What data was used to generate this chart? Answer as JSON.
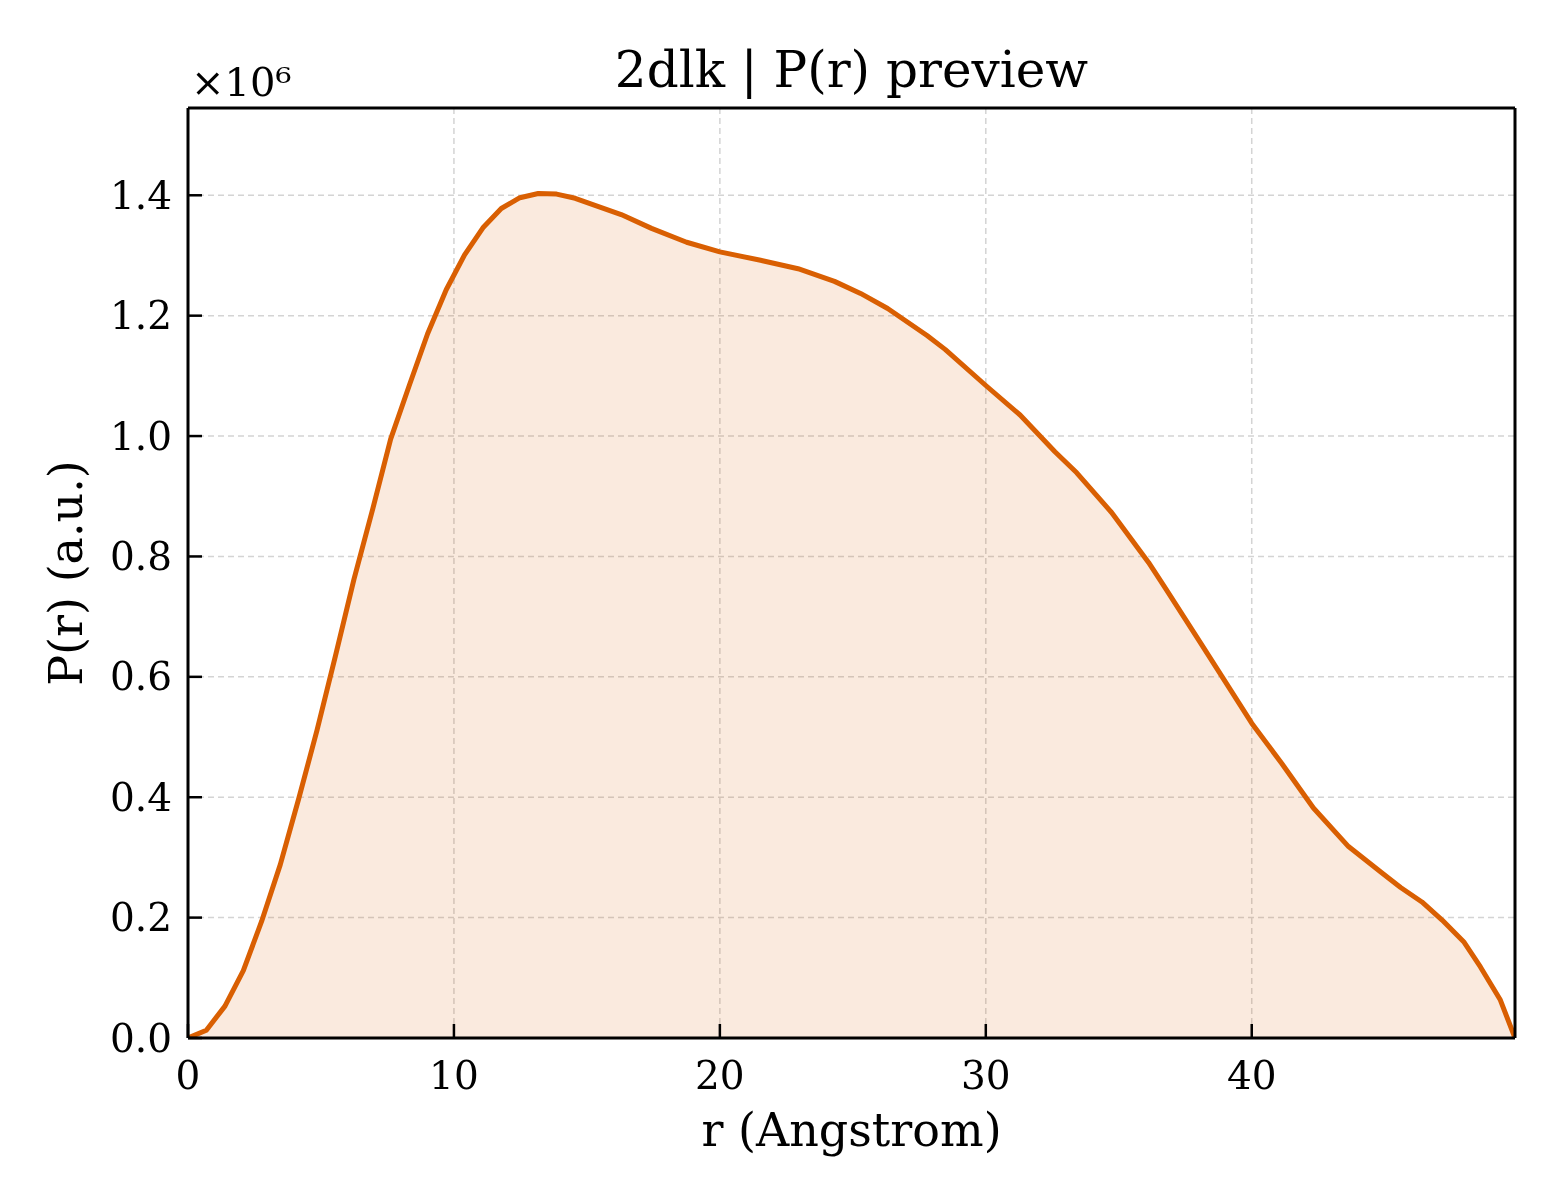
{
  "chart_data": {
    "type": "area",
    "title": "2dlk | P(r) preview",
    "xlabel": "r (Angstrom)",
    "ylabel": "P(r) (a.u.)",
    "annotations": [
      "×10⁶"
    ],
    "x": [
      0,
      0.69,
      1.39,
      2.08,
      2.77,
      3.47,
      4.16,
      4.85,
      5.54,
      6.24,
      6.93,
      7.62,
      8.32,
      9.01,
      9.71,
      10.4,
      11.09,
      11.78,
      12.48,
      13.17,
      13.86,
      14.56,
      15.25,
      16.29,
      17.43,
      18.75,
      20,
      21.53,
      22.94,
      24.31,
      25.29,
      26.31,
      27.79,
      28.47,
      30,
      31.29,
      32.6,
      33.42,
      34.73,
      36.12,
      36.77,
      38.08,
      40,
      41.13,
      42.32,
      43.64,
      44.9,
      45.6,
      46.4,
      47.16,
      47.97,
      48.6,
      49.35,
      49.9
    ],
    "series": [
      {
        "color": "#d95f02",
        "values": [
          0,
          0.013,
          0.053,
          0.112,
          0.194,
          0.288,
          0.397,
          0.511,
          0.634,
          0.762,
          0.876,
          0.995,
          1.084,
          1.17,
          1.243,
          1.301,
          1.346,
          1.378,
          1.396,
          1.403,
          1.402,
          1.395,
          1.384,
          1.368,
          1.345,
          1.322,
          1.306,
          1.292,
          1.278,
          1.257,
          1.237,
          1.212,
          1.167,
          1.144,
          1.084,
          1.035,
          0.974,
          0.939,
          0.873,
          0.79,
          0.746,
          0.656,
          0.523,
          0.456,
          0.382,
          0.318,
          0.274,
          0.25,
          0.226,
          0.196,
          0.16,
          0.118,
          0.063,
          0
        ]
      }
    ],
    "xlim": [
      0,
      49.9
    ],
    "xticks": [
      0,
      10,
      20,
      30,
      40
    ],
    "ylim": [
      0,
      1.545
    ],
    "yticks": [
      {
        "value": 0,
        "label": "0.0"
      },
      0.2,
      0.4,
      0.6,
      0.8,
      {
        "value": 1,
        "label": "1.0"
      },
      1.2,
      1.4
    ],
    "grid": true
  }
}
